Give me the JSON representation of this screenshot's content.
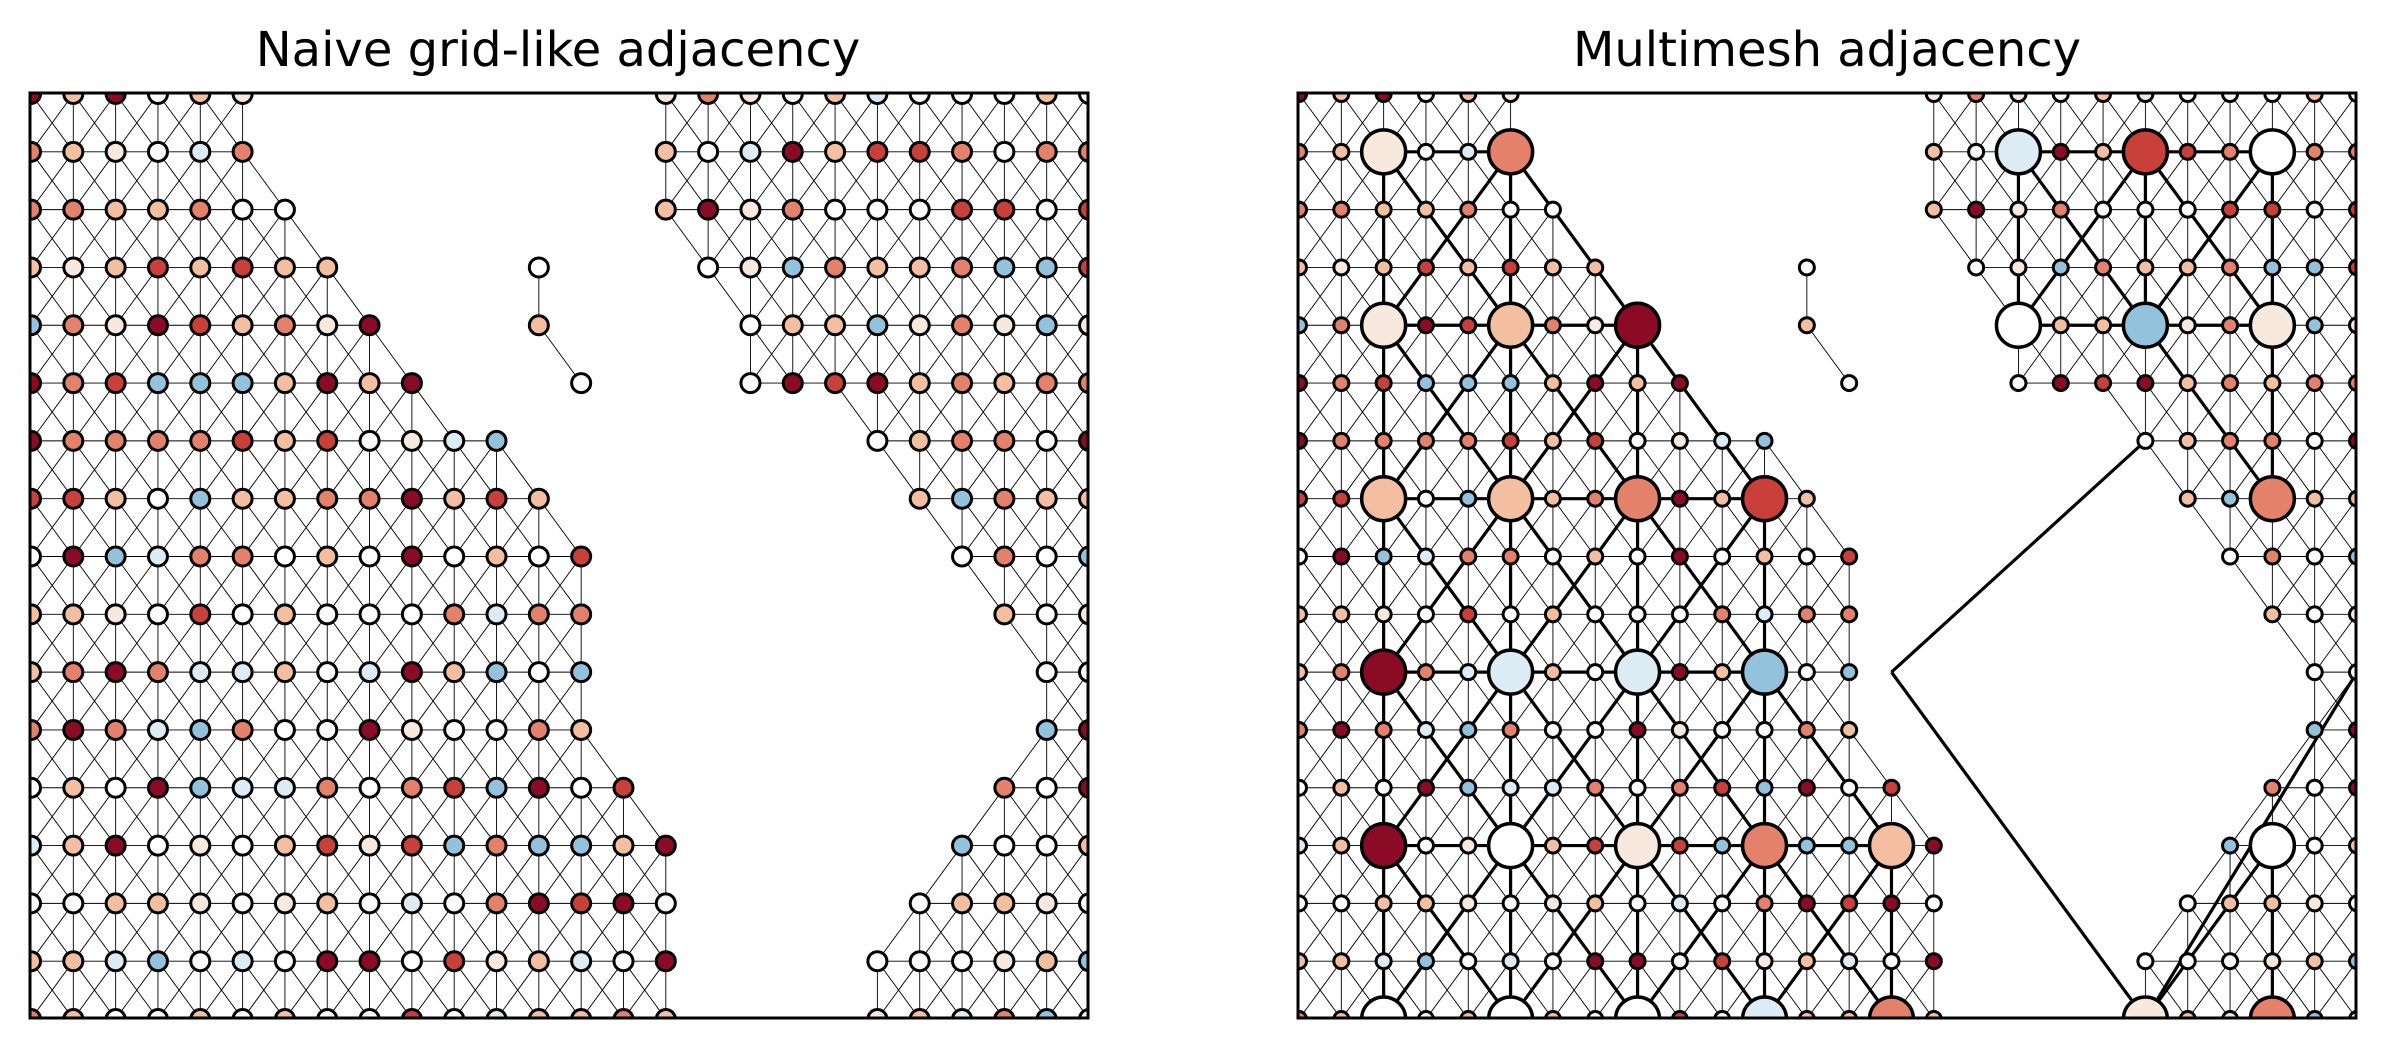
{
  "panels": [
    {
      "id": "naive",
      "title": "Naive grid-like adjacency"
    },
    {
      "id": "multimesh",
      "title": "Multimesh adjacency"
    }
  ],
  "colors": {
    "dark_red": "#8b0a26",
    "red": "#c9403b",
    "salmon": "#e4816b",
    "peach": "#f4bfa0",
    "cream": "#f8e9df",
    "white": "#ffffff",
    "ice": "#dcebf4",
    "blue": "#93c2dc",
    "edge": "#000000"
  },
  "land_regions": [
    {
      "name": "left-landmass",
      "polygon": [
        [
          0,
          0
        ],
        [
          6,
          0
        ],
        [
          6,
          1
        ],
        [
          7,
          2
        ],
        [
          8,
          3
        ],
        [
          9,
          4
        ],
        [
          10,
          5
        ],
        [
          11,
          6
        ],
        [
          13,
          7
        ],
        [
          14,
          8
        ],
        [
          14,
          9
        ],
        [
          14,
          10
        ],
        [
          14,
          11
        ],
        [
          15,
          12
        ],
        [
          16,
          13
        ],
        [
          16,
          14
        ],
        [
          16,
          15
        ],
        [
          16,
          16
        ],
        [
          0,
          16
        ]
      ]
    },
    {
      "name": "right-landmass",
      "polygon": [
        [
          17,
          0
        ],
        [
          25,
          0
        ],
        [
          25,
          16
        ],
        [
          20,
          16
        ],
        [
          21,
          15
        ],
        [
          22,
          14
        ],
        [
          23,
          13
        ],
        [
          24,
          12
        ],
        [
          24,
          11
        ],
        [
          24,
          10
        ],
        [
          23,
          9
        ],
        [
          22,
          8
        ],
        [
          21,
          7
        ],
        [
          20,
          6
        ],
        [
          17,
          6
        ],
        [
          18,
          5
        ],
        [
          17,
          4
        ],
        [
          16,
          3
        ],
        [
          15,
          2
        ],
        [
          15,
          1
        ],
        [
          16,
          0
        ]
      ]
    },
    {
      "name": "small-island",
      "polygon": [
        [
          12,
          3
        ],
        [
          13,
          3
        ],
        [
          13,
          4
        ],
        [
          15,
          6
        ],
        [
          14,
          6
        ],
        [
          12,
          4
        ]
      ]
    }
  ]
}
